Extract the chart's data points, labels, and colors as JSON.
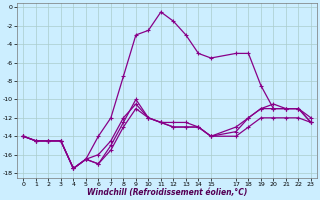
{
  "xlabel": "Windchill (Refroidissement éolien,°C)",
  "background_color": "#cceeff",
  "grid_color": "#aacccc",
  "line_color": "#880088",
  "xlim": [
    -0.5,
    23.5
  ],
  "ylim": [
    -18.5,
    0.5
  ],
  "xticks": [
    0,
    1,
    2,
    3,
    4,
    5,
    6,
    7,
    8,
    9,
    10,
    11,
    12,
    13,
    14,
    15,
    17,
    18,
    19,
    20,
    21,
    22,
    23
  ],
  "yticks": [
    0,
    -2,
    -4,
    -6,
    -8,
    -10,
    -12,
    -14,
    -16,
    -18
  ],
  "line1_x": [
    0,
    1,
    2,
    3,
    4,
    5,
    6,
    7,
    8,
    9,
    10,
    11,
    12,
    13,
    14,
    15,
    17,
    18,
    19,
    20,
    21,
    22,
    23
  ],
  "line1_y": [
    -14,
    -14.5,
    -14.5,
    -14.5,
    -17.5,
    -16.5,
    -17,
    -15.5,
    -13,
    -11,
    -12,
    -12.5,
    -12.5,
    -12.5,
    -13,
    -14,
    -14,
    -13,
    -12,
    -12,
    -12,
    -12,
    -12.5
  ],
  "line2_x": [
    0,
    1,
    2,
    3,
    4,
    5,
    6,
    7,
    8,
    9,
    10,
    11,
    12,
    13,
    14,
    15,
    17,
    18,
    19,
    20,
    21,
    22,
    23
  ],
  "line2_y": [
    -14,
    -14.5,
    -14.5,
    -14.5,
    -17.5,
    -16.5,
    -16,
    -14.5,
    -12,
    -10.5,
    -12,
    -12.5,
    -13,
    -13,
    -13,
    -14,
    -13.5,
    -12,
    -11,
    -11,
    -11,
    -11,
    -12.5
  ],
  "line3_x": [
    0,
    1,
    2,
    3,
    4,
    5,
    6,
    7,
    8,
    9,
    10,
    11,
    12,
    13,
    14,
    15,
    17,
    18,
    19,
    20,
    21,
    22,
    23
  ],
  "line3_y": [
    -14,
    -14.5,
    -14.5,
    -14.5,
    -17.5,
    -16.5,
    -14,
    -12,
    -7.5,
    -3,
    -2.5,
    -0.5,
    -1.5,
    -3,
    -5,
    -5.5,
    -5,
    -5,
    -8.5,
    -11,
    -11,
    -11,
    -12.5
  ],
  "line4_x": [
    0,
    1,
    2,
    3,
    4,
    5,
    6,
    7,
    8,
    9,
    10,
    11,
    12,
    13,
    14,
    15,
    17,
    18,
    19,
    20,
    21,
    22,
    23
  ],
  "line4_y": [
    -14,
    -14.5,
    -14.5,
    -14.5,
    -17.5,
    -16.5,
    -17,
    -15,
    -12.5,
    -10,
    -12,
    -12.5,
    -13,
    -13,
    -13,
    -14,
    -13,
    -12,
    -11,
    -10.5,
    -11,
    -11,
    -12
  ]
}
